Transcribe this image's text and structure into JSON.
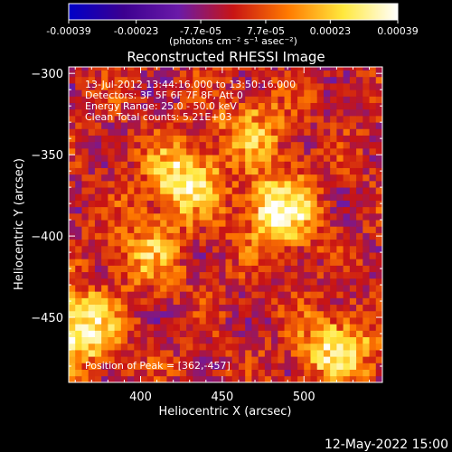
{
  "colorbar": {
    "tick_labels": [
      "-0.00039",
      "-0.00023",
      "-7.7e-05",
      "7.7e-05",
      "0.00023",
      "0.00039"
    ],
    "tick_values": [
      -0.00039,
      -0.00023,
      -7.7e-05,
      7.7e-05,
      0.00023,
      0.00039
    ],
    "range": [
      -0.00039,
      0.00039
    ],
    "units": "(photons cm⁻² s⁻¹ asec⁻²)",
    "colormap": [
      "#0000c8",
      "#3c0090",
      "#6a1aa8",
      "#c81414",
      "#ff7a00",
      "#ffe83c",
      "#ffffff"
    ]
  },
  "chart_data": {
    "type": "heatmap",
    "title": "Reconstructed RHESSI Image",
    "xlabel": "Heliocentric X (arcsec)",
    "ylabel": "Heliocentric Y (arcsec)",
    "xlim": [
      356,
      548
    ],
    "ylim": [
      -490,
      -296
    ],
    "x_ticks": [
      400,
      450,
      500
    ],
    "y_ticks": [
      -300,
      -350,
      -400,
      -450
    ],
    "info_lines": [
      "13-Jul-2012 13:44:16.000 to 13:50:16.000",
      "Detectors: 3F 5F 6F 7F 8F, Att 0",
      "Energy Range: 25.0 - 50.0 keV",
      "Clean    Total counts: 5.21E+03"
    ],
    "peak_label": "Position of Peak = [362,-457]",
    "peak": [
      362,
      -457
    ],
    "bright_regions": [
      {
        "x": 485,
        "y": -385,
        "value": 0.00036
      },
      {
        "x": 425,
        "y": -365,
        "value": 0.00032
      },
      {
        "x": 362,
        "y": -457,
        "value": 0.00039
      },
      {
        "x": 520,
        "y": -470,
        "value": 0.0003
      },
      {
        "x": 405,
        "y": -410,
        "value": 0.00018
      },
      {
        "x": 470,
        "y": -335,
        "value": 0.0002
      }
    ]
  },
  "timestamp": "12-May-2022 15:00"
}
